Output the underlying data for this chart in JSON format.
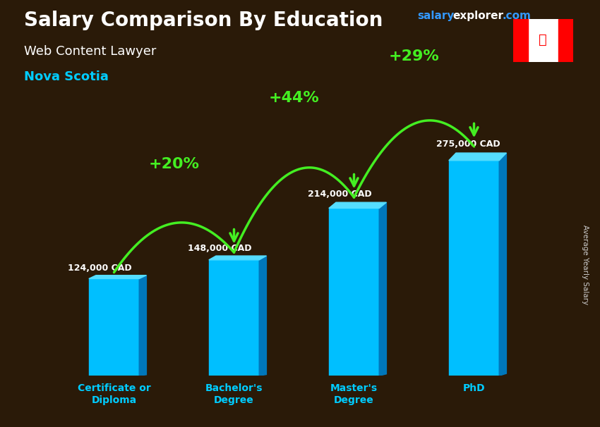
{
  "title": "Salary Comparison By Education",
  "subtitle1": "Web Content Lawyer",
  "subtitle2": "Nova Scotia",
  "watermark_salary": "salary",
  "watermark_explorer": "explorer",
  "watermark_com": ".com",
  "ylabel": "Average Yearly Salary",
  "categories": [
    "Certificate or\nDiploma",
    "Bachelor's\nDegree",
    "Master's\nDegree",
    "PhD"
  ],
  "values": [
    124000,
    148000,
    214000,
    275000
  ],
  "value_labels": [
    "124,000 CAD",
    "148,000 CAD",
    "214,000 CAD",
    "275,000 CAD"
  ],
  "pct_labels": [
    "+20%",
    "+44%",
    "+29%"
  ],
  "bar_color_main": "#00BFFF",
  "bar_color_side": "#0077BB",
  "bar_color_top": "#55DDFF",
  "arrow_color": "#44EE22",
  "pct_color": "#44EE22",
  "title_color": "#FFFFFF",
  "subtitle1_color": "#FFFFFF",
  "subtitle2_color": "#00CCFF",
  "label_color": "#FFFFFF",
  "watermark_salary_color": "#3399FF",
  "watermark_explorer_color": "#FFFFFF",
  "watermark_com_color": "#3399FF",
  "bg_color": "#2a1a08",
  "ylabel_color": "#CCCCCC",
  "cat_label_color": "#00CCFF",
  "ylim": [
    0,
    300000
  ],
  "title_fontsize": 20,
  "subtitle1_fontsize": 13,
  "subtitle2_fontsize": 13,
  "pct_fontsize": 16,
  "label_fontsize": 9,
  "cat_fontsize": 10
}
